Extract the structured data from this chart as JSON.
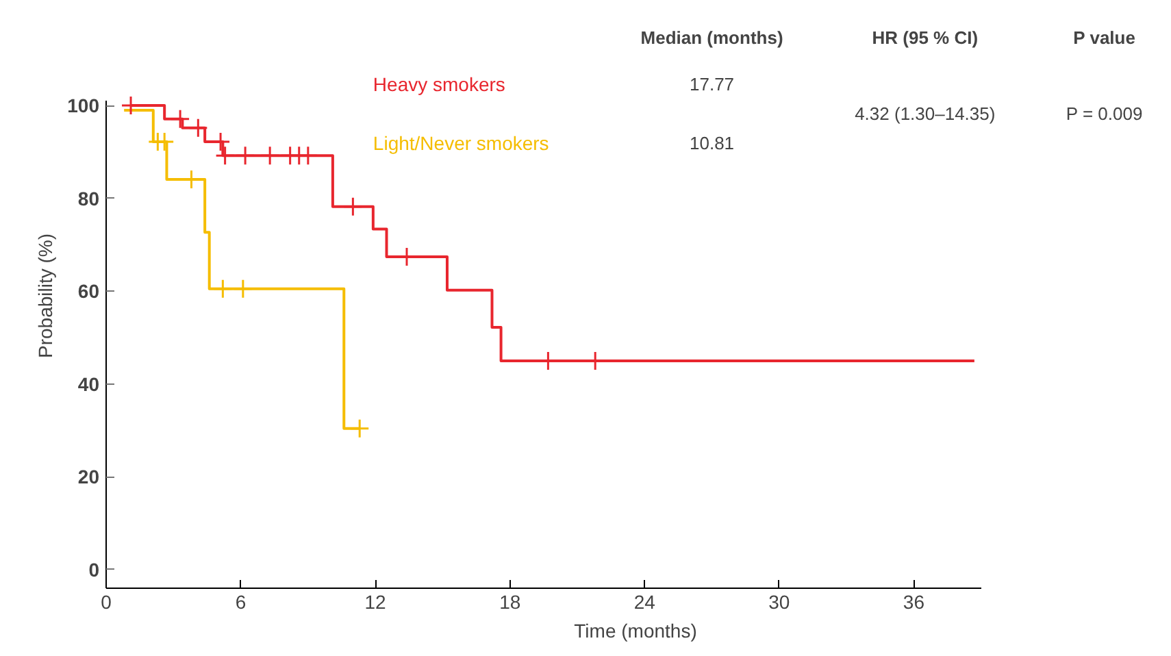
{
  "chart_data": {
    "type": "step",
    "xlabel": "Time (months)",
    "ylabel": "Probability (%)",
    "xlim": [
      0,
      39
    ],
    "xticks": [
      0,
      6,
      12,
      18,
      24,
      30,
      36
    ],
    "ylim": [
      -4,
      101
    ],
    "yticks": [
      0,
      20,
      40,
      60,
      80,
      100
    ],
    "grid": false,
    "legend": "top",
    "marker": "none",
    "line_style": "solid",
    "annotations": [
      "Median (months)",
      "HR (95 % CI)",
      "P value",
      "17.77",
      "10.81",
      "4.32 (1.30–14.35)",
      "P = 0.009"
    ],
    "series": [
      {
        "name": "Heavy smokers",
        "color": "#e8262e",
        "x": [
          1.1,
          2.6,
          3.4,
          4.4,
          5.2,
          10.1,
          11.9,
          12.5,
          15.2,
          17.2,
          17.6,
          38.7
        ],
        "values": [
          100,
          97.1,
          95.2,
          92.2,
          89.2,
          78.2,
          73.4,
          67.4,
          60.2,
          52.2,
          45.0,
          45.0
        ]
      },
      {
        "name": "Light/Never smokers",
        "color": "#f5bd00",
        "x": [
          0.8,
          2.1,
          2.7,
          4.4,
          4.6,
          10.6,
          11.3
        ],
        "values": [
          99,
          92.2,
          84.1,
          72.7,
          60.5,
          30.4,
          30.4
        ]
      },
      {
        "color": "#e8262e",
        "type": "scatter",
        "marker": "cross",
        "x": [
          1.1,
          3.3,
          4.1,
          5.1,
          5.3,
          6.2,
          7.3,
          8.2,
          8.6,
          9.0,
          11.0,
          13.4,
          19.7,
          21.8
        ],
        "values": [
          100,
          97.1,
          95.2,
          92.2,
          89.2,
          89.2,
          89.2,
          89.2,
          89.2,
          89.2,
          78.2,
          67.4,
          45.0,
          45.0
        ]
      },
      {
        "color": "#f5bd00",
        "type": "scatter",
        "marker": "cross",
        "x": [
          2.3,
          2.6,
          3.8,
          5.2,
          6.1,
          11.3
        ],
        "values": [
          92.2,
          92.2,
          84.1,
          60.5,
          60.5,
          30.4
        ]
      }
    ]
  }
}
